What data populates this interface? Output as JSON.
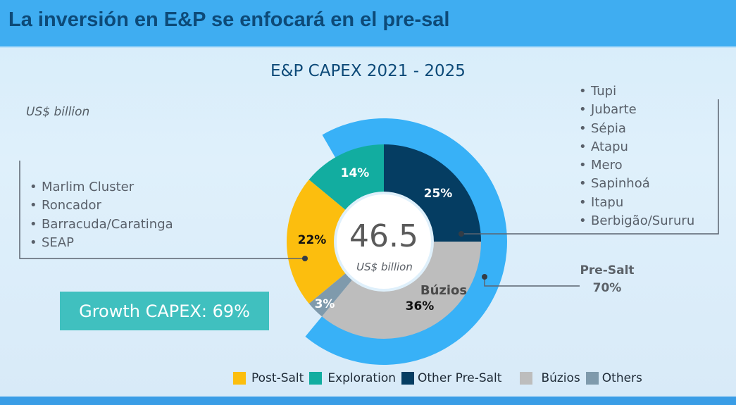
{
  "header": {
    "title": "La inversión en E&P se enfocará en el pre-sal"
  },
  "chart_data": {
    "type": "pie",
    "title": "E&P CAPEX 2021 - 2025",
    "unit": "US$ billion",
    "total": 46.5,
    "categories": [
      "Other Pre-Salt",
      "Búzios",
      "Others",
      "Post-Salt",
      "Exploration"
    ],
    "values": [
      25,
      36,
      3,
      22,
      14
    ],
    "colors": [
      "#053d62",
      "#bdbdbd",
      "#7f9aac",
      "#fcbe0e",
      "#12ada0"
    ],
    "outer_ring": {
      "label": "Pre-Salt",
      "value": 70,
      "color": "#38b1f7"
    },
    "legend_position": "bottom",
    "annotations": {
      "growth_capex": "Growth CAPEX: 69%",
      "post_salt_fields": [
        "Marlim Cluster",
        "Roncador",
        "Barracuda/Caratinga",
        "SEAP"
      ],
      "other_pre_salt_fields": [
        "Tupi",
        "Jubarte",
        "Sépia",
        "Atapu",
        "Mero",
        "Sapinhoá",
        "Itapu",
        "Berbigão/Sururu"
      ]
    }
  },
  "chart": {
    "title": "E&P CAPEX 2021 - 2025",
    "unit_label": "US$ billion",
    "center_value": "46.5",
    "center_unit": "US$ billion",
    "slice_labels": {
      "other_pre_salt": "25%",
      "buzios_name": "Búzios",
      "buzios": "36%",
      "others": "3%",
      "post_salt": "22%",
      "exploration": "14%"
    },
    "growth_capex": "Growth CAPEX: 69%",
    "presalt_name": "Pre-Salt",
    "presalt_value": "70%",
    "post_salt_fields": [
      "Marlim Cluster",
      "Roncador",
      "Barracuda/Caratinga",
      "SEAP"
    ],
    "other_pre_salt_fields": [
      "Tupi",
      "Jubarte",
      "Sépia",
      "Atapu",
      "Mero",
      "Sapinhoá",
      "Itapu",
      "Berbigão/Sururu"
    ]
  },
  "legend": [
    {
      "label": "Post-Salt",
      "color": "#fcbe0e"
    },
    {
      "label": "Exploration",
      "color": "#12ada0"
    },
    {
      "label": "Other Pre-Salt",
      "color": "#053d62"
    },
    {
      "label": "Búzios",
      "color": "#bdbdbd"
    },
    {
      "label": "Others",
      "color": "#7f9aac"
    }
  ]
}
